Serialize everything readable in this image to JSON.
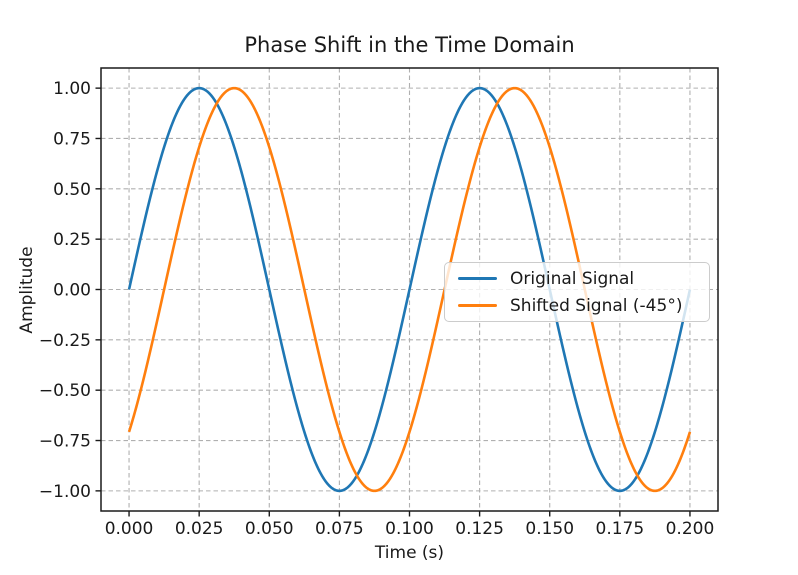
{
  "chart_data": {
    "type": "line",
    "title": "Phase Shift in the Time Domain",
    "xlabel": "Time (s)",
    "ylabel": "Amplitude",
    "xlim": [
      -0.01,
      0.21
    ],
    "ylim": [
      -1.1,
      1.1
    ],
    "grid": true,
    "grid_color": "#b0b0b0",
    "axis_color": "#1a1a1a",
    "background_color": "#ffffff",
    "legend_position": "center right",
    "xticks": {
      "values": [
        0,
        0.025,
        0.05,
        0.075,
        0.1,
        0.125,
        0.15,
        0.175,
        0.2
      ],
      "labels": [
        "0.000",
        "0.025",
        "0.050",
        "0.075",
        "0.100",
        "0.125",
        "0.150",
        "0.175",
        "0.200"
      ]
    },
    "yticks": {
      "values": [
        1,
        0.75,
        0.5,
        0.25,
        0,
        -0.25,
        -0.5,
        -0.75,
        -1
      ],
      "labels": [
        "1.00",
        "0.75",
        "0.50",
        "0.25",
        "0.00",
        "−0.25",
        "−0.50",
        "−0.75",
        "−1.00"
      ]
    },
    "series": [
      {
        "name": "Original Signal",
        "color": "#1f77b4",
        "waveform": "sine",
        "amplitude": 1,
        "frequency_hz": 10,
        "phase_deg": 0,
        "t_start": 0,
        "t_end": 0.2
      },
      {
        "name": "Shifted Signal (-45°)",
        "color": "#ff7f0e",
        "waveform": "sine",
        "amplitude": 1,
        "frequency_hz": 10,
        "phase_deg": -45,
        "t_start": 0,
        "t_end": 0.2
      }
    ],
    "samples": {
      "x": [
        0,
        0.005,
        0.01,
        0.015,
        0.02,
        0.025,
        0.03,
        0.035,
        0.04,
        0.045,
        0.05,
        0.055,
        0.06,
        0.065,
        0.07,
        0.075,
        0.08,
        0.085,
        0.09,
        0.095,
        0.1,
        0.105,
        0.11,
        0.115,
        0.12,
        0.125,
        0.13,
        0.135,
        0.14,
        0.145,
        0.15,
        0.155,
        0.16,
        0.165,
        0.17,
        0.175,
        0.18,
        0.185,
        0.19,
        0.195,
        0.2
      ],
      "original_signal": [
        0,
        0.309,
        0.588,
        0.809,
        0.951,
        1,
        0.951,
        0.809,
        0.588,
        0.309,
        0,
        -0.309,
        -0.588,
        -0.809,
        -0.951,
        -1,
        -0.951,
        -0.809,
        -0.588,
        -0.309,
        0,
        0.309,
        0.588,
        0.809,
        0.951,
        1,
        0.951,
        0.809,
        0.588,
        0.309,
        0,
        -0.309,
        -0.588,
        -0.809,
        -0.951,
        -1,
        -0.951,
        -0.809,
        -0.588,
        -0.309,
        0
      ],
      "shifted_signal": [
        -0.707,
        -0.454,
        -0.156,
        0.156,
        0.454,
        0.707,
        0.891,
        0.988,
        0.988,
        0.891,
        0.707,
        0.454,
        0.156,
        -0.156,
        -0.454,
        -0.707,
        -0.891,
        -0.988,
        -0.988,
        -0.891,
        -0.707,
        -0.454,
        -0.156,
        0.156,
        0.454,
        0.707,
        0.891,
        0.988,
        0.988,
        0.891,
        0.707,
        0.454,
        0.156,
        -0.156,
        -0.454,
        -0.707,
        -0.891,
        -0.988,
        -0.988,
        -0.891,
        -0.707
      ]
    }
  }
}
